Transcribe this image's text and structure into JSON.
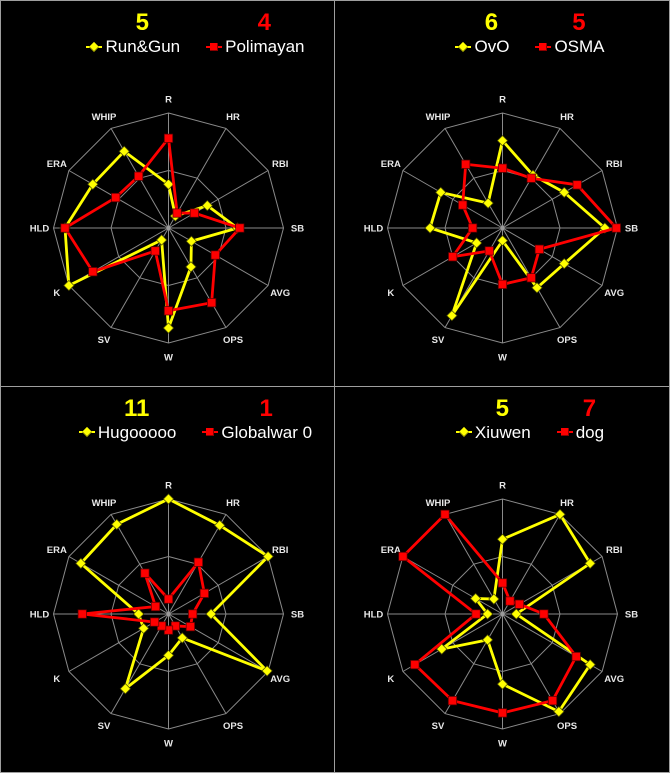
{
  "style": {
    "background": "#000000",
    "panel_divider_color": "#9e9e9e",
    "grid_color": "#8a8a8a",
    "axis_label_color": "#e8e8e8",
    "team_name_color": "#ffffff",
    "yellow_series_color": "#ffff00",
    "red_series_color": "#ff0000"
  },
  "chart_data": [
    {
      "type": "radar",
      "panel": "top-left",
      "categories": [
        "R",
        "HR",
        "RBI",
        "SB",
        "AVG",
        "OPS",
        "W",
        "SV",
        "K",
        "HLD",
        "ERA",
        "WHIP"
      ],
      "axis_range": [
        0,
        1
      ],
      "gridline_levels": [
        0.5,
        1
      ],
      "legend_position": "top",
      "series": [
        {
          "name": "Run&Gun",
          "score": "5",
          "color": "#ffff00",
          "marker": "diamond",
          "values": [
            0.38,
            0.12,
            0.39,
            0.6,
            0.23,
            0.39,
            0.87,
            0.12,
            1.0,
            0.9,
            0.76,
            0.77
          ]
        },
        {
          "name": "Polimayan",
          "score": "4",
          "color": "#ff0000",
          "marker": "square",
          "values": [
            0.78,
            0.15,
            0.26,
            0.62,
            0.47,
            0.75,
            0.72,
            0.23,
            0.76,
            0.9,
            0.53,
            0.52
          ]
        }
      ]
    },
    {
      "type": "radar",
      "panel": "top-right",
      "categories": [
        "R",
        "HR",
        "RBI",
        "SB",
        "AVG",
        "OPS",
        "W",
        "SV",
        "K",
        "HLD",
        "ERA",
        "WHIP"
      ],
      "axis_range": [
        0,
        1
      ],
      "gridline_levels": [
        0.5,
        1
      ],
      "legend_position": "top",
      "series": [
        {
          "name": "OvO",
          "score": "6",
          "color": "#ffff00",
          "marker": "diamond",
          "values": [
            0.76,
            0.53,
            0.62,
            0.89,
            0.62,
            0.6,
            0.11,
            0.88,
            0.26,
            0.63,
            0.62,
            0.25
          ]
        },
        {
          "name": "OSMA",
          "score": "5",
          "color": "#ff0000",
          "marker": "square",
          "values": [
            0.52,
            0.5,
            0.75,
            0.99,
            0.37,
            0.5,
            0.49,
            0.23,
            0.5,
            0.26,
            0.4,
            0.64
          ]
        }
      ]
    },
    {
      "type": "radar",
      "panel": "bottom-left",
      "categories": [
        "R",
        "HR",
        "RBI",
        "SB",
        "AVG",
        "OPS",
        "W",
        "SV",
        "K",
        "HLD",
        "ERA",
        "WHIP"
      ],
      "axis_range": [
        0,
        1
      ],
      "gridline_levels": [
        0.5,
        1
      ],
      "legend_position": "top",
      "series": [
        {
          "name": "Hugooooo",
          "score": "11",
          "color": "#ffff00",
          "marker": "diamond",
          "values": [
            1.0,
            0.89,
            1.0,
            0.37,
            0.99,
            0.24,
            0.36,
            0.75,
            0.25,
            0.26,
            0.88,
            0.9
          ]
        },
        {
          "name": "Globalwar 0",
          "score": "1",
          "color": "#ff0000",
          "marker": "square",
          "values": [
            0.13,
            0.52,
            0.36,
            0.21,
            0.22,
            0.12,
            0.14,
            0.12,
            0.14,
            0.75,
            0.13,
            0.41
          ]
        }
      ]
    },
    {
      "type": "radar",
      "panel": "bottom-right",
      "categories": [
        "R",
        "HR",
        "RBI",
        "SB",
        "AVG",
        "OPS",
        "W",
        "SV",
        "K",
        "HLD",
        "ERA",
        "WHIP"
      ],
      "axis_range": [
        0,
        1
      ],
      "gridline_levels": [
        0.5,
        1
      ],
      "legend_position": "top",
      "series": [
        {
          "name": "Xiuwen",
          "score": "5",
          "color": "#ffff00",
          "marker": "diamond",
          "values": [
            0.65,
            1.0,
            0.88,
            0.12,
            0.88,
            0.98,
            0.61,
            0.26,
            0.61,
            0.13,
            0.27,
            0.15
          ]
        },
        {
          "name": "dog",
          "score": "7",
          "color": "#ff0000",
          "marker": "square",
          "values": [
            0.27,
            0.13,
            0.17,
            0.36,
            0.74,
            0.87,
            0.86,
            0.87,
            0.88,
            0.23,
            1.0,
            1.0
          ]
        }
      ]
    }
  ]
}
